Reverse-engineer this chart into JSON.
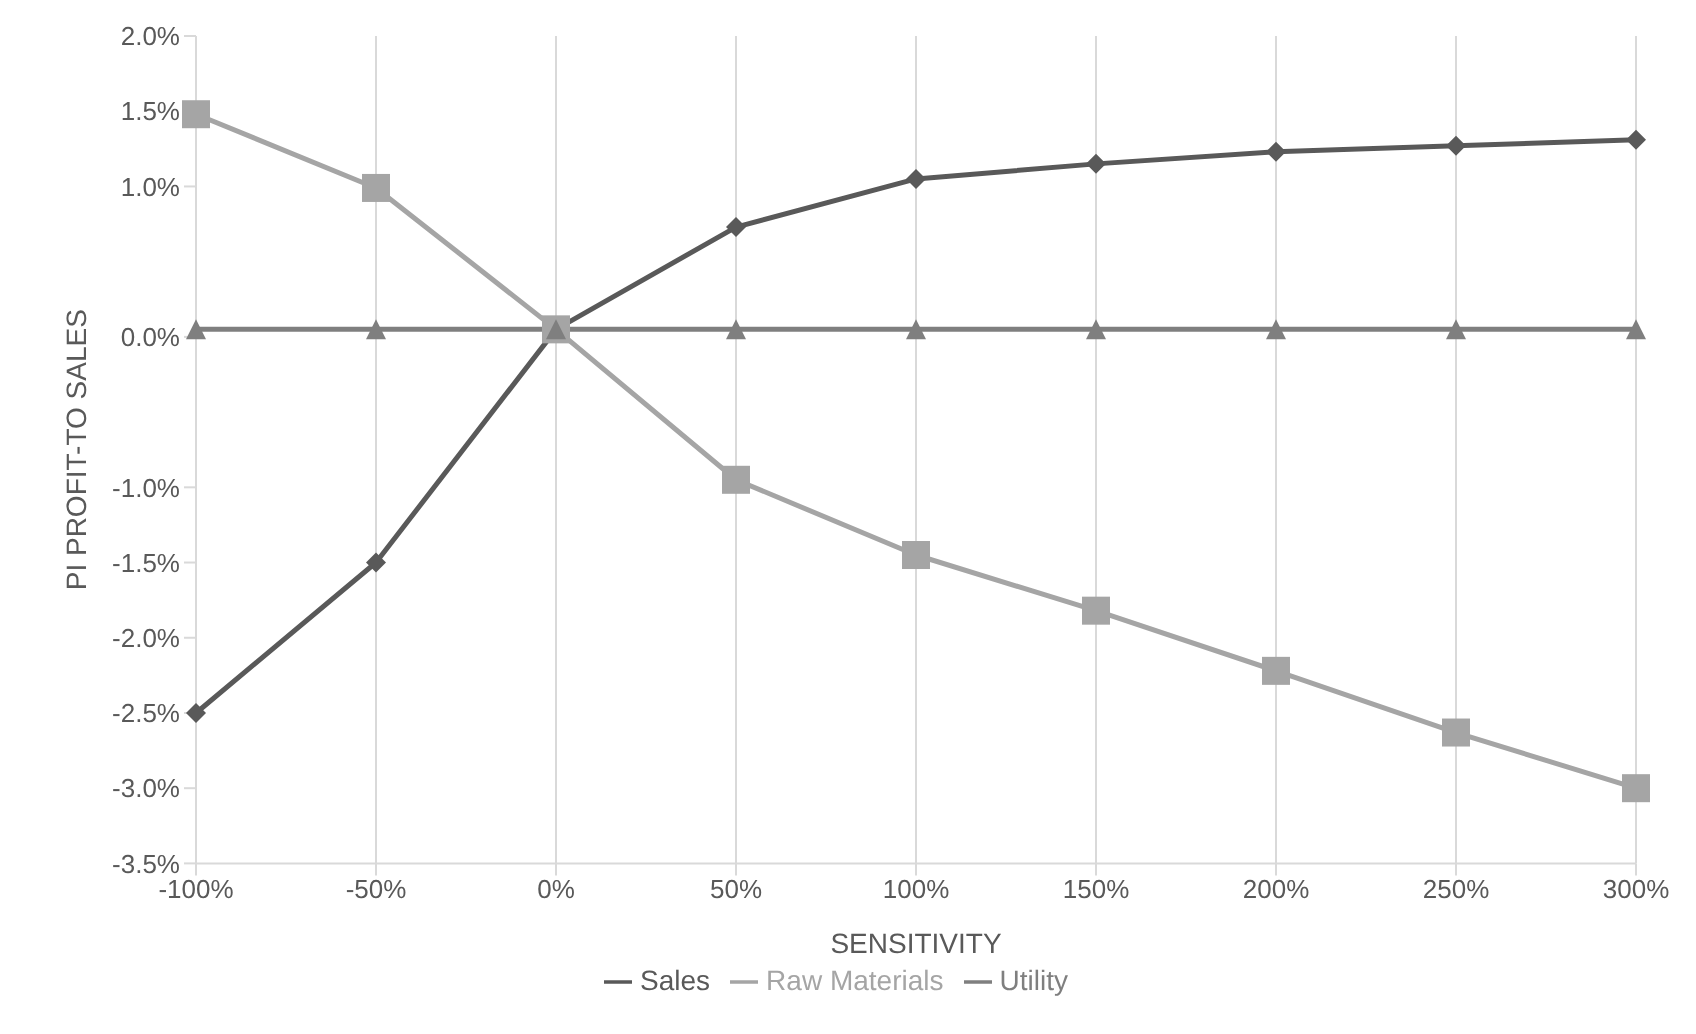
{
  "chart_data": {
    "type": "line",
    "xlabel": "SENSITIVITY",
    "ylabel": "PI PROFIT-TO SALES",
    "categories": [
      "-100%",
      "-50%",
      "0%",
      "50%",
      "100%",
      "150%",
      "200%",
      "250%",
      "300%"
    ],
    "series": [
      {
        "name": "Sales",
        "color": "#595959",
        "marker": "diamond",
        "values": [
          -2.5,
          -1.5,
          0.05,
          0.73,
          1.05,
          1.15,
          1.23,
          1.27,
          1.31
        ]
      },
      {
        "name": "Raw Materials",
        "color": "#a5a5a5",
        "marker": "square",
        "values": [
          1.48,
          0.99,
          0.05,
          -0.95,
          -1.45,
          -1.82,
          -2.22,
          -2.63,
          -3.0
        ]
      },
      {
        "name": "Utility",
        "color": "#7f7f7f",
        "marker": "triangle",
        "values": [
          0.05,
          0.05,
          0.05,
          0.05,
          0.05,
          0.05,
          0.05,
          0.05,
          0.05
        ]
      }
    ],
    "ylim": [
      -3.5,
      2.0
    ],
    "yticks": [
      {
        "value": -3.5,
        "label": "-3.5%"
      },
      {
        "value": -3.0,
        "label": "-3.0%"
      },
      {
        "value": -2.5,
        "label": "-2.5%"
      },
      {
        "value": -2.0,
        "label": "-2.0%"
      },
      {
        "value": -1.5,
        "label": "-1.5%"
      },
      {
        "value": -1.0,
        "label": "-1.0%"
      },
      {
        "value": 0.0,
        "label": "0.0%"
      },
      {
        "value": 1.0,
        "label": "1.0%"
      },
      {
        "value": 1.5,
        "label": "1.5%"
      },
      {
        "value": 2.0,
        "label": "2.0%"
      }
    ],
    "grid": "x",
    "legend": "bottom",
    "line_style": "solid"
  }
}
